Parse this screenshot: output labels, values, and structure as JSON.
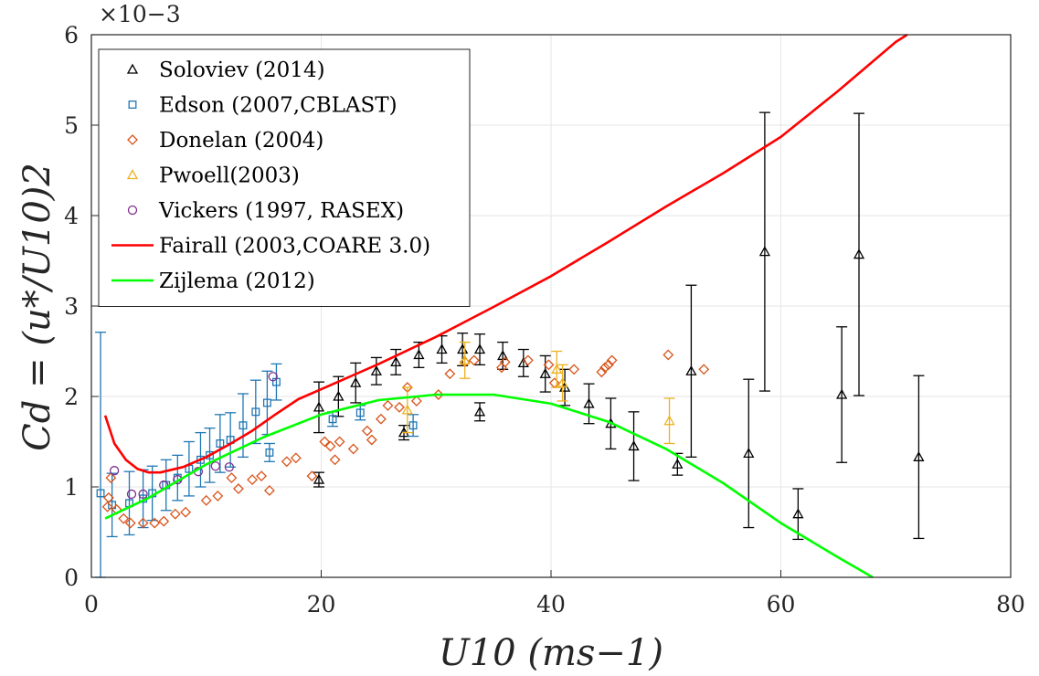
{
  "chart_data": {
    "type": "scatter",
    "title": "",
    "xlabel": "U10 (ms−1)",
    "ylabel": "Cd = (u*/U10)2",
    "y_scale_factor": "×10−3",
    "xlim": [
      0,
      80
    ],
    "ylim": [
      0,
      6
    ],
    "xticks": [
      0,
      20,
      40,
      60,
      80
    ],
    "yticks": [
      0,
      1,
      2,
      3,
      4,
      5,
      6
    ],
    "grid": true,
    "legend_position": "top-left",
    "series": [
      {
        "name": "Soloviev (2014)",
        "marker": "triangle",
        "color": "#000000",
        "points": [
          {
            "x": 19.8,
            "y": 1.08,
            "err": 0.08
          },
          {
            "x": 19.8,
            "y": 1.88,
            "err": 0.28
          },
          {
            "x": 21.5,
            "y": 2.0,
            "err": 0.22
          },
          {
            "x": 23.0,
            "y": 2.15,
            "err": 0.22
          },
          {
            "x": 24.8,
            "y": 2.28,
            "err": 0.15
          },
          {
            "x": 26.5,
            "y": 2.38,
            "err": 0.14
          },
          {
            "x": 28.5,
            "y": 2.46,
            "err": 0.14
          },
          {
            "x": 30.5,
            "y": 2.52,
            "err": 0.15
          },
          {
            "x": 32.3,
            "y": 2.52,
            "err": 0.18
          },
          {
            "x": 33.8,
            "y": 2.52,
            "err": 0.17
          },
          {
            "x": 35.8,
            "y": 2.45,
            "err": 0.15
          },
          {
            "x": 37.6,
            "y": 2.37,
            "err": 0.15
          },
          {
            "x": 39.5,
            "y": 2.25,
            "err": 0.2
          },
          {
            "x": 41.2,
            "y": 2.1,
            "err": 0.2
          },
          {
            "x": 43.3,
            "y": 1.92,
            "err": 0.22
          },
          {
            "x": 45.2,
            "y": 1.7,
            "err": 0.28
          },
          {
            "x": 47.2,
            "y": 1.45,
            "err": 0.38
          },
          {
            "x": 51.0,
            "y": 1.25,
            "err": 0.12
          },
          {
            "x": 52.2,
            "y": 2.28,
            "err": 0.95
          },
          {
            "x": 57.2,
            "y": 1.37,
            "err": 0.82
          },
          {
            "x": 58.6,
            "y": 3.6,
            "err": 1.54
          },
          {
            "x": 61.5,
            "y": 0.7,
            "err": 0.28
          },
          {
            "x": 65.3,
            "y": 2.02,
            "err": 0.75
          },
          {
            "x": 66.8,
            "y": 3.57,
            "err": 1.56
          },
          {
            "x": 72.0,
            "y": 1.33,
            "err": 0.9
          },
          {
            "x": 27.2,
            "y": 1.6,
            "err": 0.08
          },
          {
            "x": 33.8,
            "y": 1.83,
            "err": 0.1
          }
        ]
      },
      {
        "name": "Edson (2007,CBLAST)",
        "marker": "square",
        "color": "#1f77b4",
        "points": [
          {
            "x": 0.8,
            "y": 0.93,
            "err": 1.78
          },
          {
            "x": 1.8,
            "y": 0.8,
            "err": 0.35
          },
          {
            "x": 3.3,
            "y": 0.82,
            "err": 0.35
          },
          {
            "x": 4.5,
            "y": 0.87,
            "err": 0.32
          },
          {
            "x": 5.3,
            "y": 0.93,
            "err": 0.3
          },
          {
            "x": 6.5,
            "y": 1.02,
            "err": 0.28
          },
          {
            "x": 7.5,
            "y": 1.1,
            "err": 0.25
          },
          {
            "x": 8.5,
            "y": 1.2,
            "err": 0.3
          },
          {
            "x": 9.5,
            "y": 1.3,
            "err": 0.3
          },
          {
            "x": 10.3,
            "y": 1.35,
            "err": 0.3
          },
          {
            "x": 11.2,
            "y": 1.48,
            "err": 0.32
          },
          {
            "x": 12.1,
            "y": 1.52,
            "err": 0.3
          },
          {
            "x": 13.2,
            "y": 1.68,
            "err": 0.35
          },
          {
            "x": 14.3,
            "y": 1.83,
            "err": 0.35
          },
          {
            "x": 15.3,
            "y": 1.93,
            "err": 0.35
          },
          {
            "x": 16.1,
            "y": 2.16,
            "err": 0.2
          },
          {
            "x": 15.5,
            "y": 1.38,
            "err": 0.1
          },
          {
            "x": 21.0,
            "y": 1.75,
            "err": 0.08
          },
          {
            "x": 23.4,
            "y": 1.82,
            "err": 0.08
          },
          {
            "x": 28.0,
            "y": 1.68,
            "err": 0.12
          }
        ]
      },
      {
        "name": "Donelan (2004)",
        "marker": "diamond",
        "color": "#d95319",
        "points": [
          {
            "x": 1.4,
            "y": 0.78
          },
          {
            "x": 1.5,
            "y": 0.88
          },
          {
            "x": 1.7,
            "y": 1.1
          },
          {
            "x": 2.2,
            "y": 0.75
          },
          {
            "x": 2.8,
            "y": 0.65
          },
          {
            "x": 3.4,
            "y": 0.6
          },
          {
            "x": 4.5,
            "y": 0.6
          },
          {
            "x": 5.5,
            "y": 0.6
          },
          {
            "x": 6.3,
            "y": 0.62
          },
          {
            "x": 7.3,
            "y": 0.7
          },
          {
            "x": 8.2,
            "y": 0.72
          },
          {
            "x": 10.0,
            "y": 0.85
          },
          {
            "x": 11.0,
            "y": 0.9
          },
          {
            "x": 12.2,
            "y": 1.1
          },
          {
            "x": 12.8,
            "y": 0.98
          },
          {
            "x": 14.0,
            "y": 1.08
          },
          {
            "x": 14.8,
            "y": 1.12
          },
          {
            "x": 15.5,
            "y": 0.96
          },
          {
            "x": 17.0,
            "y": 1.28
          },
          {
            "x": 17.8,
            "y": 1.32
          },
          {
            "x": 19.2,
            "y": 1.12
          },
          {
            "x": 20.3,
            "y": 1.5
          },
          {
            "x": 20.8,
            "y": 1.45
          },
          {
            "x": 21.2,
            "y": 1.3
          },
          {
            "x": 21.6,
            "y": 1.5
          },
          {
            "x": 22.8,
            "y": 1.42
          },
          {
            "x": 24.0,
            "y": 1.62
          },
          {
            "x": 24.4,
            "y": 1.52
          },
          {
            "x": 25.2,
            "y": 1.75
          },
          {
            "x": 25.8,
            "y": 1.9
          },
          {
            "x": 26.8,
            "y": 1.88
          },
          {
            "x": 27.5,
            "y": 2.1
          },
          {
            "x": 28.3,
            "y": 1.95
          },
          {
            "x": 30.2,
            "y": 2.02
          },
          {
            "x": 31.2,
            "y": 2.25
          },
          {
            "x": 32.5,
            "y": 2.38
          },
          {
            "x": 33.3,
            "y": 2.4
          },
          {
            "x": 35.7,
            "y": 2.32
          },
          {
            "x": 36.0,
            "y": 2.38
          },
          {
            "x": 38.0,
            "y": 2.4
          },
          {
            "x": 39.8,
            "y": 2.35
          },
          {
            "x": 40.3,
            "y": 2.15
          },
          {
            "x": 42.0,
            "y": 2.3
          },
          {
            "x": 44.4,
            "y": 2.27
          },
          {
            "x": 44.7,
            "y": 2.32
          },
          {
            "x": 45.0,
            "y": 2.35
          },
          {
            "x": 45.3,
            "y": 2.4
          },
          {
            "x": 50.2,
            "y": 2.46
          },
          {
            "x": 53.3,
            "y": 2.3
          }
        ]
      },
      {
        "name": "Pwoell(2003)",
        "marker": "triangle",
        "color": "#edb120",
        "points": [
          {
            "x": 27.5,
            "y": 1.85,
            "err": 0.25
          },
          {
            "x": 32.5,
            "y": 2.4,
            "err": 0.2
          },
          {
            "x": 40.5,
            "y": 2.3,
            "err": 0.2
          },
          {
            "x": 41.0,
            "y": 2.15,
            "err": 0.2
          },
          {
            "x": 50.3,
            "y": 1.73,
            "err": 0.25
          }
        ]
      },
      {
        "name": "Vickers (1997, RASEX)",
        "marker": "circle",
        "color": "#7e2f8e",
        "points": [
          {
            "x": 2.0,
            "y": 1.18
          },
          {
            "x": 3.5,
            "y": 0.92
          },
          {
            "x": 4.5,
            "y": 0.92
          },
          {
            "x": 6.3,
            "y": 1.02
          },
          {
            "x": 7.5,
            "y": 1.08
          },
          {
            "x": 9.3,
            "y": 1.17
          },
          {
            "x": 10.8,
            "y": 1.23
          },
          {
            "x": 12.0,
            "y": 1.22
          },
          {
            "x": 15.8,
            "y": 2.22
          }
        ]
      },
      {
        "name": "Fairall (2003,COARE 3.0)",
        "marker": "line",
        "color": "#ff0000",
        "points": [
          {
            "x": 1.2,
            "y": 1.79
          },
          {
            "x": 2,
            "y": 1.48
          },
          {
            "x": 3,
            "y": 1.3
          },
          {
            "x": 4,
            "y": 1.2
          },
          {
            "x": 5,
            "y": 1.16
          },
          {
            "x": 6,
            "y": 1.16
          },
          {
            "x": 8,
            "y": 1.22
          },
          {
            "x": 10,
            "y": 1.33
          },
          {
            "x": 12,
            "y": 1.47
          },
          {
            "x": 14,
            "y": 1.62
          },
          {
            "x": 16,
            "y": 1.8
          },
          {
            "x": 18,
            "y": 1.97
          },
          {
            "x": 20,
            "y": 2.08
          },
          {
            "x": 25,
            "y": 2.36
          },
          {
            "x": 30,
            "y": 2.66
          },
          {
            "x": 35,
            "y": 2.99
          },
          {
            "x": 40,
            "y": 3.33
          },
          {
            "x": 45,
            "y": 3.71
          },
          {
            "x": 50,
            "y": 4.1
          },
          {
            "x": 55,
            "y": 4.47
          },
          {
            "x": 60,
            "y": 4.87
          },
          {
            "x": 65,
            "y": 5.38
          },
          {
            "x": 70,
            "y": 5.92
          },
          {
            "x": 71,
            "y": 6.0
          }
        ]
      },
      {
        "name": "Zijlema (2012)",
        "marker": "line",
        "color": "#00ff00",
        "points": [
          {
            "x": 1.2,
            "y": 0.65
          },
          {
            "x": 5,
            "y": 0.88
          },
          {
            "x": 10,
            "y": 1.25
          },
          {
            "x": 15,
            "y": 1.55
          },
          {
            "x": 20,
            "y": 1.8
          },
          {
            "x": 25,
            "y": 1.96
          },
          {
            "x": 30,
            "y": 2.02
          },
          {
            "x": 35,
            "y": 2.02
          },
          {
            "x": 40,
            "y": 1.92
          },
          {
            "x": 45,
            "y": 1.72
          },
          {
            "x": 50,
            "y": 1.42
          },
          {
            "x": 55,
            "y": 1.04
          },
          {
            "x": 60,
            "y": 0.6
          },
          {
            "x": 65,
            "y": 0.22
          },
          {
            "x": 68,
            "y": 0.0
          }
        ]
      }
    ]
  }
}
